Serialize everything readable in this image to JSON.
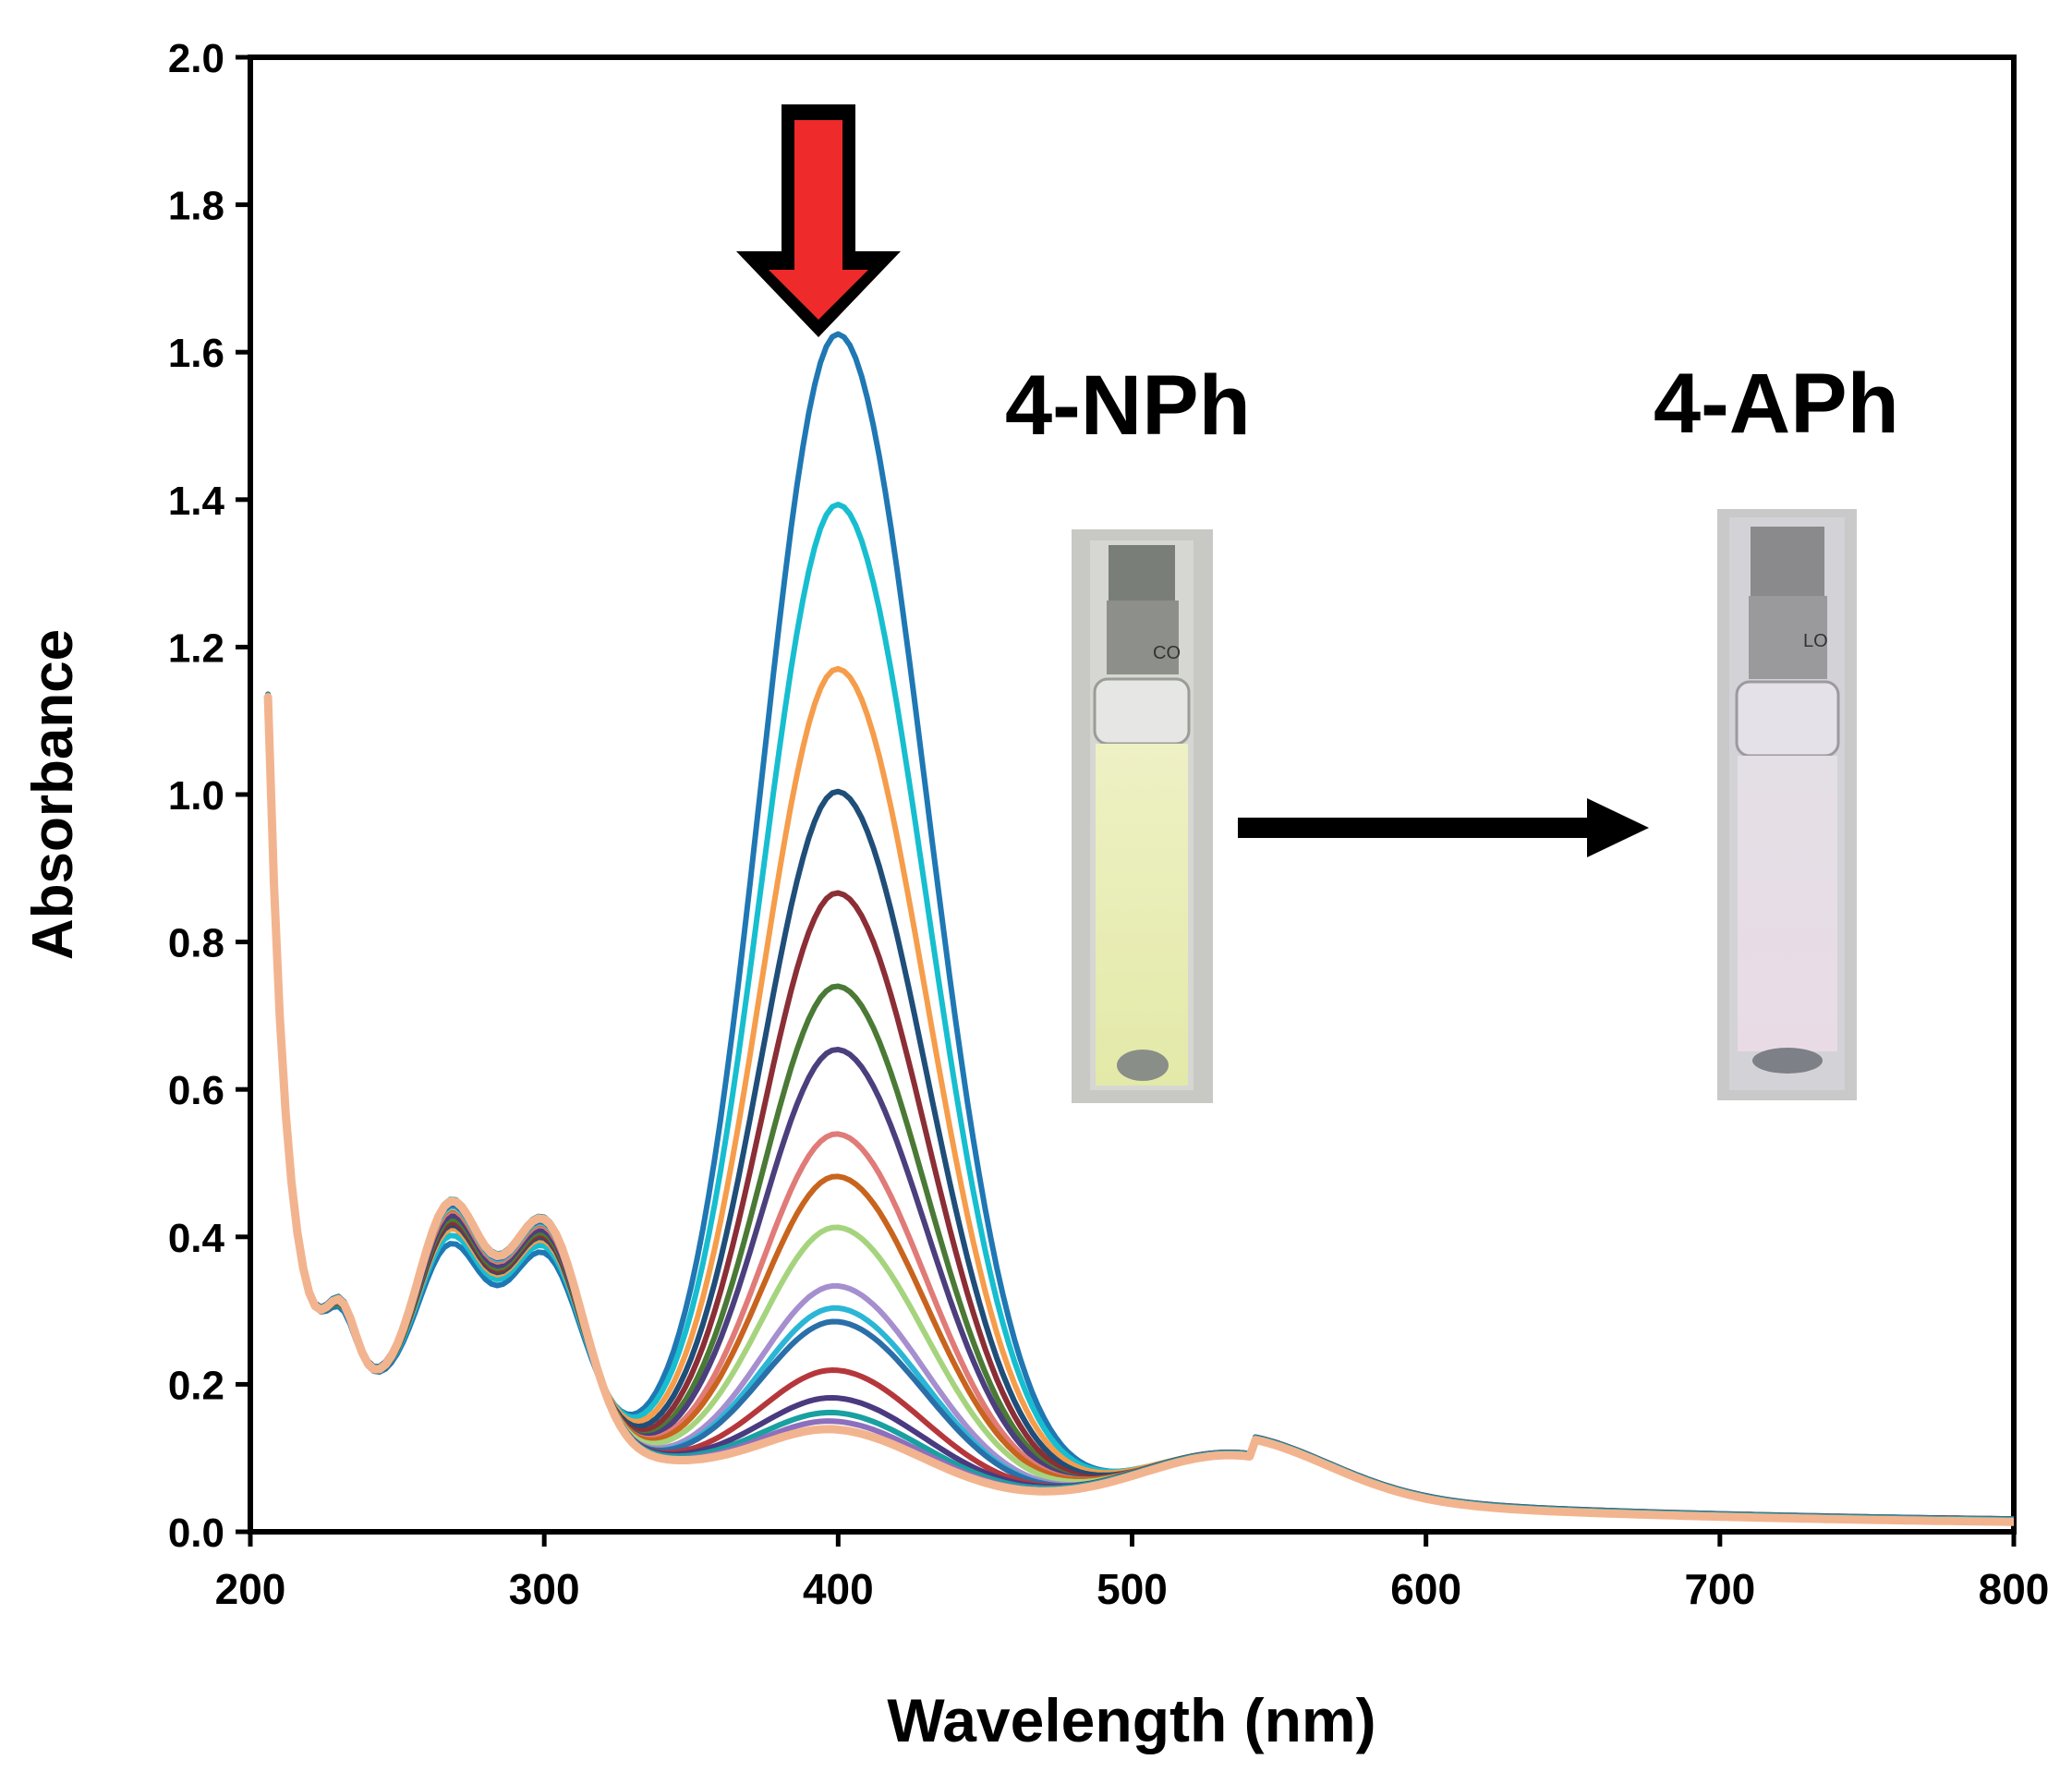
{
  "chart_data": {
    "type": "line",
    "title": "",
    "xlabel": "Wavelength (nm)",
    "ylabel": "Absorbance",
    "xlim": [
      200,
      800
    ],
    "ylim": [
      0,
      2.0
    ],
    "xticks": [
      200,
      300,
      400,
      500,
      600,
      700,
      800
    ],
    "xtick_labels": [
      "200",
      "300",
      "400",
      "500",
      "600",
      "700",
      "800"
    ],
    "yticks": [
      0,
      0.2,
      0.4,
      0.6,
      0.8,
      1.0,
      1.2,
      1.4,
      1.6,
      1.8,
      2.0
    ],
    "ytick_labels": [
      "0.0",
      "0.2",
      "0.4",
      "0.6",
      "0.8",
      "1.0",
      "1.2",
      "1.4",
      "1.6",
      "1.8",
      "2.0"
    ],
    "grid": false,
    "legend": "none",
    "peak_wavelength_nm": 400,
    "peak_absorbance_series": [
      1.61,
      1.37,
      1.14,
      0.97,
      0.83,
      0.7,
      0.61,
      0.49,
      0.43,
      0.36,
      0.28,
      0.25,
      0.23,
      0.16,
      0.12,
      0.1,
      0.09,
      0.08
    ],
    "series_colors": [
      "#1f78b4",
      "#17becf",
      "#f59d4b",
      "#1f4e79",
      "#8b2e35",
      "#4a7a35",
      "#4b3f7e",
      "#e07b78",
      "#c8641e",
      "#a6d47e",
      "#a58fcf",
      "#2bb6d6",
      "#2a6fa8",
      "#b5373c",
      "#4a3a80",
      "#19a0a0",
      "#8e6fbd",
      "#f2b48f"
    ],
    "annotations": {
      "label_reactant": "4-NPh",
      "label_product": "4-APh",
      "cuvette_reactant_mark": "CO",
      "cuvette_product_mark": "LO",
      "down_arrow_color": "#ee2a2a"
    }
  }
}
